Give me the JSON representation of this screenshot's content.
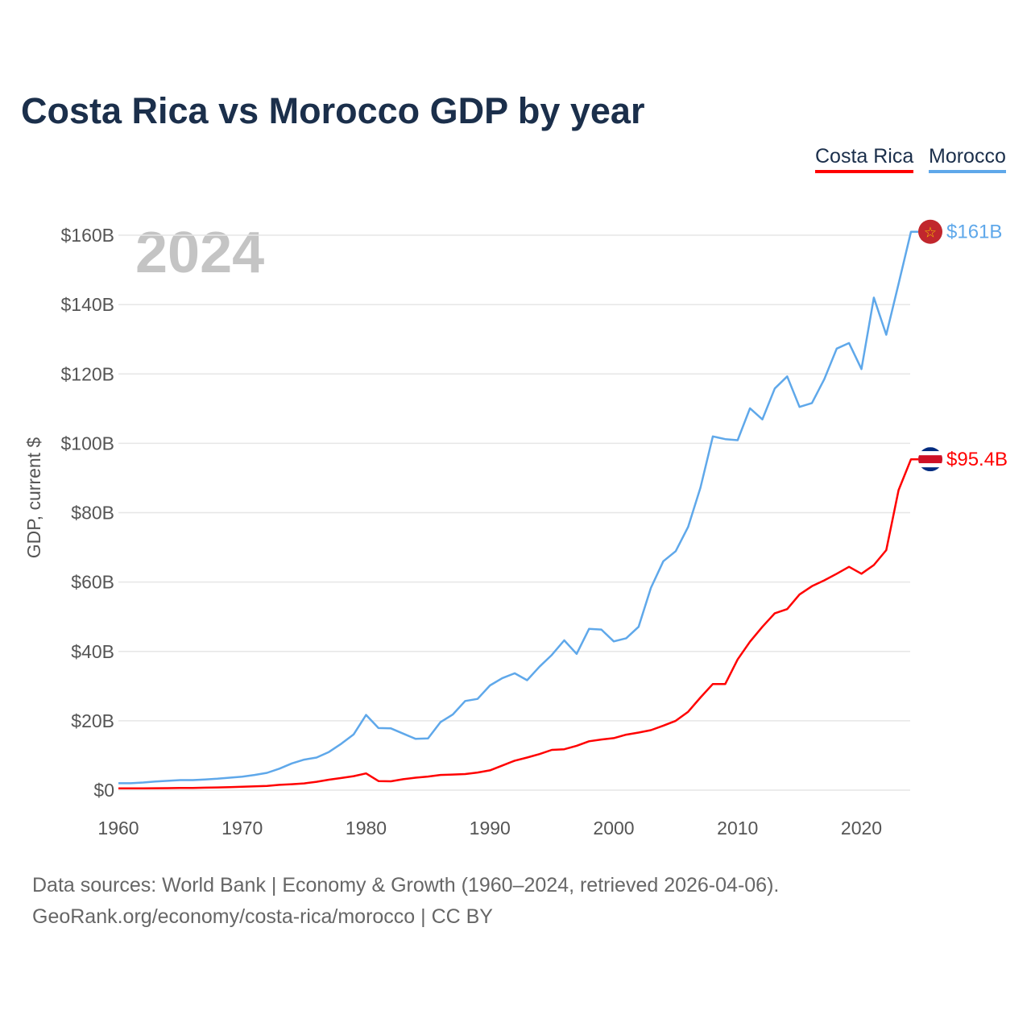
{
  "chart_data": {
    "type": "line",
    "title": "Costa Rica vs Morocco GDP by year",
    "ylabel": "GDP, current $",
    "xlabel": "",
    "ylim": [
      0,
      160
    ],
    "xlim": [
      1960,
      2024
    ],
    "grid": true,
    "legend_placement": "top-right",
    "year_watermark": "2024",
    "y_ticks": [
      0,
      20,
      40,
      60,
      80,
      100,
      120,
      140,
      160
    ],
    "y_tick_labels": [
      "$0",
      "$20B",
      "$40B",
      "$60B",
      "$80B",
      "$100B",
      "$120B",
      "$140B",
      "$160B"
    ],
    "x_ticks": [
      1960,
      1970,
      1980,
      1990,
      2000,
      2010,
      2020
    ],
    "x_tick_labels": [
      "1960",
      "1970",
      "1980",
      "1990",
      "2000",
      "2010",
      "2020"
    ],
    "x": [
      1960,
      1961,
      1962,
      1963,
      1964,
      1965,
      1966,
      1967,
      1968,
      1969,
      1970,
      1971,
      1972,
      1973,
      1974,
      1975,
      1976,
      1977,
      1978,
      1979,
      1980,
      1981,
      1982,
      1983,
      1984,
      1985,
      1986,
      1987,
      1988,
      1989,
      1990,
      1991,
      1992,
      1993,
      1994,
      1995,
      1996,
      1997,
      1998,
      1999,
      2000,
      2001,
      2002,
      2003,
      2004,
      2005,
      2006,
      2007,
      2008,
      2009,
      2010,
      2011,
      2012,
      2013,
      2014,
      2015,
      2016,
      2017,
      2018,
      2019,
      2020,
      2021,
      2022,
      2023,
      2024
    ],
    "series": [
      {
        "name": "Costa Rica",
        "color": "#ff0000",
        "end_label": "$95.4B",
        "values": [
          0.51,
          0.52,
          0.53,
          0.56,
          0.59,
          0.62,
          0.66,
          0.72,
          0.78,
          0.86,
          0.98,
          1.08,
          1.23,
          1.54,
          1.71,
          1.96,
          2.41,
          3.02,
          3.51,
          4.03,
          4.83,
          2.62,
          2.56,
          3.16,
          3.6,
          3.92,
          4.4,
          4.5,
          4.64,
          5.09,
          5.71,
          7.1,
          8.5,
          9.4,
          10.4,
          11.6,
          11.8,
          12.8,
          14.1,
          14.6,
          15.0,
          16.0,
          16.6,
          17.3,
          18.6,
          20.0,
          22.6,
          26.7,
          30.6,
          30.6,
          37.7,
          42.8,
          47.1,
          51.0,
          52.2,
          56.4,
          58.8,
          60.5,
          62.4,
          64.4,
          62.4,
          64.9,
          69.2,
          86.5,
          95.4
        ]
      },
      {
        "name": "Morocco",
        "color": "#5fa8ea",
        "end_label": "$161B",
        "values": [
          2.0,
          2.0,
          2.2,
          2.5,
          2.7,
          2.9,
          2.9,
          3.1,
          3.3,
          3.6,
          3.9,
          4.4,
          5.0,
          6.2,
          7.7,
          8.8,
          9.4,
          11.0,
          13.4,
          16.1,
          21.7,
          17.9,
          17.8,
          16.3,
          14.8,
          14.9,
          19.6,
          21.8,
          25.7,
          26.3,
          30.2,
          32.3,
          33.7,
          31.7,
          35.6,
          39.0,
          43.2,
          39.3,
          46.5,
          46.3,
          42.9,
          43.8,
          47.1,
          58.3,
          66.0,
          68.9,
          75.9,
          87.2,
          102.0,
          101.2,
          100.9,
          110.1,
          106.9,
          115.8,
          119.3,
          110.5,
          111.6,
          118.5,
          127.3,
          128.9,
          121.4,
          142.0,
          131.3,
          146.0,
          161.0
        ]
      }
    ]
  },
  "footer": {
    "line1": "Data sources: World Bank | Economy & Growth (1960–2024, retrieved 2026-04-06).",
    "line2": "GeoRank.org/economy/costa-rica/morocco | CC BY"
  }
}
